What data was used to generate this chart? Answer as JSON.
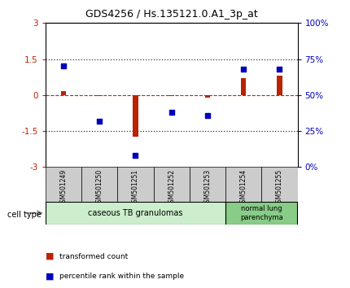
{
  "title": "GDS4256 / Hs.135121.0.A1_3p_at",
  "samples": [
    "GSM501249",
    "GSM501250",
    "GSM501251",
    "GSM501252",
    "GSM501253",
    "GSM501254",
    "GSM501255"
  ],
  "transformed_count": [
    0.15,
    -0.05,
    -1.75,
    -0.05,
    -0.1,
    0.7,
    0.8
  ],
  "percentile_rank": [
    70,
    32,
    8,
    38,
    36,
    68,
    68
  ],
  "ylim_left": [
    -3,
    3
  ],
  "ylim_right": [
    0,
    100
  ],
  "yticks_left": [
    -3,
    -1.5,
    0,
    1.5,
    3
  ],
  "yticks_right": [
    0,
    25,
    50,
    75,
    100
  ],
  "ytick_labels_left": [
    "-3",
    "-1.5",
    "0",
    "1.5",
    "3"
  ],
  "ytick_labels_right": [
    "0%",
    "25%",
    "50%",
    "75%",
    "100%"
  ],
  "red_color": "#bb2200",
  "blue_color": "#0000bb",
  "dotted_color": "#333333",
  "red_dash_color": "#cc2200",
  "group1_label": "caseous TB granulomas",
  "group2_label": "normal lung\nparenchyma",
  "group1_color": "#cceecc",
  "group2_color": "#88cc88",
  "sample_box_color": "#cccccc",
  "cell_type_label": "cell type",
  "legend1_label": "transformed count",
  "legend2_label": "percentile rank within the sample",
  "background_color": "#ffffff",
  "bar_width": 0.15
}
